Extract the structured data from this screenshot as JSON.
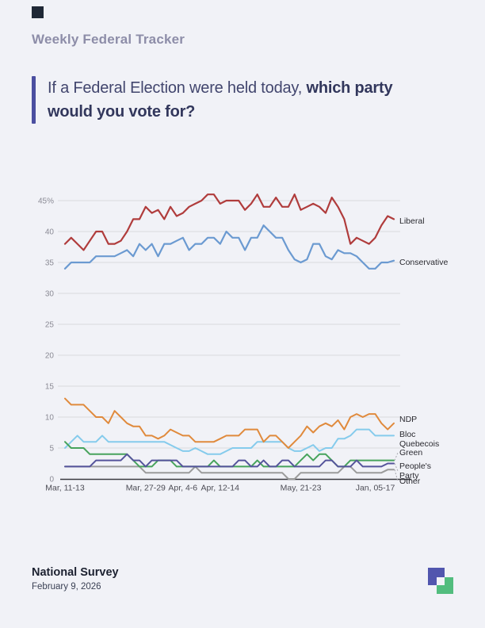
{
  "page": {
    "title": "Weekly Federal Tracker",
    "question": {
      "normal": "If a Federal Election were held today, ",
      "bold": "which party would you vote for?"
    },
    "footer": {
      "title": "National Survey",
      "date": "February 9, 2026"
    },
    "accent_color": "#4b4fa0",
    "background_color": "#f1f2f7"
  },
  "chart_data": {
    "type": "line",
    "title": "",
    "xlabel": "",
    "ylabel": "",
    "ylim": [
      0,
      47
    ],
    "grid": true,
    "legend_position": "right-of-line-ends",
    "ytick_values": [
      45,
      40,
      35,
      30,
      25,
      20,
      15,
      10,
      5,
      0
    ],
    "ytick_labels": [
      "45%",
      "40",
      "35",
      "30",
      "25",
      "20",
      "15",
      "10",
      "5",
      "0"
    ],
    "x_ticks": [
      {
        "label": "Mar, 11-13",
        "index": 0
      },
      {
        "label": "Mar, 27-29",
        "index": 13
      },
      {
        "label": "Apr, 4-6",
        "index": 19
      },
      {
        "label": "Apr, 12-14",
        "index": 25
      },
      {
        "label": "May, 21-23",
        "index": 38
      },
      {
        "label": "Jan, 05-17",
        "index": 50
      }
    ],
    "series": [
      {
        "name": "Liberal",
        "color": "#b03c3c",
        "label_lines": [
          "Liberal"
        ],
        "values": [
          38,
          39,
          38,
          37,
          38.5,
          40,
          40,
          38,
          38,
          38.5,
          40,
          42,
          42,
          44,
          43,
          43.5,
          42,
          44,
          42.5,
          43,
          44,
          44.5,
          45,
          46,
          46,
          44.5,
          45,
          45,
          45,
          43.5,
          44.5,
          46,
          44,
          44,
          45.5,
          44,
          44,
          46,
          43.5,
          44,
          44.5,
          44,
          43,
          45.5,
          44,
          42,
          38,
          39,
          38.5,
          38,
          39,
          41,
          42.5,
          42
        ]
      },
      {
        "name": "Conservative",
        "color": "#6b9ad1",
        "label_lines": [
          "Conservative"
        ],
        "values": [
          34,
          35,
          35,
          35,
          35,
          36,
          36,
          36,
          36,
          36.5,
          37,
          36,
          38,
          37,
          38,
          36,
          38,
          38,
          38.5,
          39,
          37,
          38,
          38,
          39,
          39,
          38,
          40,
          39,
          39,
          37,
          39,
          39,
          41,
          40,
          39,
          39,
          37,
          35.5,
          35,
          35.5,
          38,
          38,
          36,
          35.5,
          37,
          36.5,
          36.5,
          36,
          35,
          34,
          34,
          35,
          35,
          35.3
        ]
      },
      {
        "name": "NDP",
        "color": "#e08a3c",
        "label_lines": [
          "NDP"
        ],
        "values": [
          13,
          12,
          12,
          12,
          11,
          10,
          10,
          9,
          11,
          10,
          9,
          8.5,
          8.5,
          7,
          7,
          6.5,
          7,
          8,
          7.5,
          7,
          7,
          6,
          6,
          6,
          6,
          6.5,
          7,
          7,
          7,
          8,
          8,
          8,
          6,
          7,
          7,
          6,
          5,
          6,
          7,
          8.5,
          7.5,
          8.5,
          9,
          8.5,
          9.5,
          8,
          10,
          10.5,
          10,
          10.5,
          10.5,
          9,
          8,
          9
        ]
      },
      {
        "name": "Bloc Quebecois",
        "color": "#85cbec",
        "label_lines": [
          "Bloc",
          "Quebecois"
        ],
        "values": [
          5,
          6,
          7,
          6,
          6,
          6,
          7,
          6,
          6,
          6,
          6,
          6,
          6,
          6,
          6,
          6,
          6,
          5.5,
          5,
          4.5,
          4.5,
          5,
          4.5,
          4,
          4,
          4,
          4.5,
          5,
          5,
          5,
          5,
          6,
          6,
          6,
          6,
          6,
          5,
          4.5,
          4.5,
          5,
          5.5,
          4.5,
          5,
          5,
          6.5,
          6.5,
          7,
          8,
          8,
          8,
          7,
          7,
          7,
          7
        ]
      },
      {
        "name": "Green",
        "color": "#47a35c",
        "label_lines": [
          "Green"
        ],
        "values": [
          6,
          5,
          5,
          5,
          4,
          4,
          4,
          4,
          4,
          4,
          4,
          3,
          2,
          2,
          2,
          3,
          3,
          3,
          2,
          2,
          2,
          2,
          2,
          2,
          3,
          2,
          2,
          2,
          2,
          2,
          2,
          3,
          2,
          2,
          2,
          2,
          2,
          2,
          3,
          4,
          3,
          4,
          4,
          3,
          2,
          2,
          3,
          3,
          3,
          3,
          3,
          3,
          3,
          3
        ]
      },
      {
        "name": "People's Party",
        "color": "#55549b",
        "label_lines": [
          "People's",
          "Party"
        ],
        "values": [
          2,
          2,
          2,
          2,
          2,
          3,
          3,
          3,
          3,
          3,
          4,
          3,
          3,
          2,
          3,
          3,
          3,
          3,
          3,
          2,
          2,
          2,
          2,
          2,
          2,
          2,
          2,
          2,
          3,
          3,
          2,
          2,
          3,
          2,
          2,
          3,
          3,
          2,
          2,
          2,
          2,
          2,
          3,
          3,
          2,
          2,
          2,
          3,
          2,
          2,
          2,
          2,
          2.5,
          2.5
        ]
      },
      {
        "name": "Other",
        "color": "#9b9b9b",
        "label_lines": [
          "Other"
        ],
        "values": [
          2,
          2,
          2,
          2,
          2,
          2,
          2,
          2,
          2,
          2,
          2,
          2,
          2,
          1,
          1,
          1,
          1,
          1,
          1,
          1,
          1,
          2,
          1,
          1,
          1,
          1,
          1,
          1,
          1,
          1,
          1,
          1,
          1,
          1,
          1,
          1,
          0,
          0,
          1,
          1,
          1,
          1,
          1,
          1,
          1,
          2,
          2,
          1,
          1,
          1,
          1,
          1,
          1.5,
          1.5
        ]
      }
    ],
    "colors": {
      "grid": "#d9dade",
      "axis": "#3a3a40",
      "ytick_text": "#8b8b95",
      "xtick_text": "#4c4c55",
      "series_label_text": "#2a2a30",
      "leader_line": "#a9a9b0"
    }
  },
  "logo": {
    "purple": "#5156ae",
    "green": "#52bd7e"
  }
}
